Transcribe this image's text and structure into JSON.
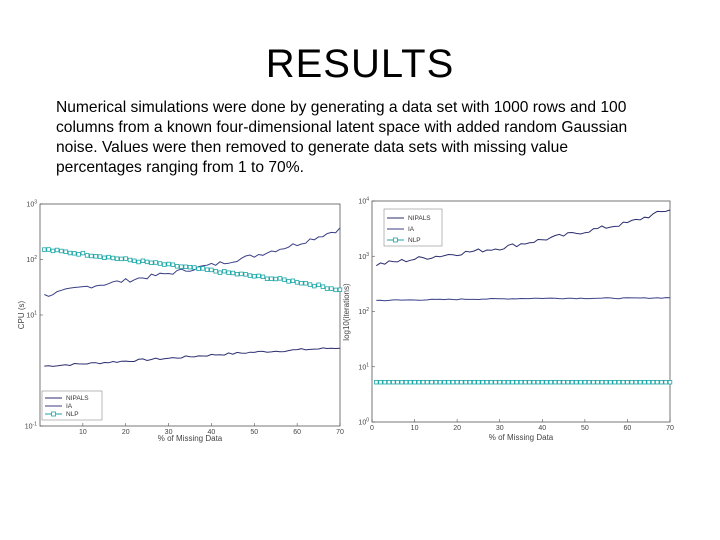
{
  "slide": {
    "title": "RESULTS",
    "text": "Numerical simulations were done by generating a data set with 1000 rows and 100 columns from a known four-dimensional latent space with added random Gaussian noise. Values were then removed to generate data sets with missing value percentages ranging from 1 to 70%."
  },
  "colors": {
    "nipals": "#2a2d6e",
    "ia": "#3a3f86",
    "nlp": "#1aa6a6"
  },
  "chart_data": [
    {
      "type": "line",
      "title": "",
      "xlabel": "% of Missing Data",
      "ylabel": "CPU (s)",
      "xlim": [
        0,
        70
      ],
      "ylim_log10": [
        -1,
        3
      ],
      "yscale": "log",
      "xticks": [
        "10",
        "20",
        "30",
        "40",
        "50",
        "60",
        "70"
      ],
      "yticks": [
        {
          "base": "10",
          "exp": "3",
          "v": 3
        },
        {
          "base": "10",
          "exp": "2",
          "v": 2
        },
        {
          "base": "10",
          "exp": "1",
          "v": 1
        },
        {
          "base": "10",
          "exp": "-1",
          "v": -1
        }
      ],
      "legend": {
        "position": "bottom-left",
        "entries": [
          "NIPALS",
          "IA",
          "NLP"
        ]
      },
      "series": [
        {
          "name": "NIPALS",
          "color_key": "nipals",
          "marker": "none",
          "anchors": [
            [
              1,
              0.08
            ],
            [
              10,
              0.12
            ],
            [
              20,
              0.17
            ],
            [
              30,
              0.22
            ],
            [
              40,
              0.28
            ],
            [
              50,
              0.33
            ],
            [
              60,
              0.37
            ],
            [
              70,
              0.41
            ]
          ],
          "noise": 0.02
        },
        {
          "name": "IA",
          "color_key": "ia",
          "marker": "none",
          "anchors": [
            [
              1,
              1.35
            ],
            [
              10,
              1.5
            ],
            [
              20,
              1.62
            ],
            [
              30,
              1.75
            ],
            [
              40,
              1.9
            ],
            [
              50,
              2.07
            ],
            [
              60,
              2.28
            ],
            [
              70,
              2.55
            ]
          ],
          "noise": 0.04
        },
        {
          "name": "NLP",
          "color_key": "nlp",
          "marker": "square",
          "anchors": [
            [
              1,
              2.18
            ],
            [
              10,
              2.1
            ],
            [
              20,
              2.0
            ],
            [
              30,
              1.9
            ],
            [
              40,
              1.8
            ],
            [
              50,
              1.7
            ],
            [
              60,
              1.6
            ],
            [
              70,
              1.45
            ]
          ],
          "noise": 0.02
        }
      ]
    },
    {
      "type": "line",
      "title": "",
      "xlabel": "% of Missing Data",
      "ylabel": "log10(iterations)",
      "xlim": [
        0,
        70
      ],
      "ylim": [
        0,
        4
      ],
      "yscale": "log",
      "xticks": [
        "0",
        "10",
        "20",
        "30",
        "40",
        "50",
        "60",
        "70"
      ],
      "yticks": [
        {
          "base": "10",
          "exp": "4",
          "v": 4
        },
        {
          "base": "10",
          "exp": "3",
          "v": 3
        },
        {
          "base": "10",
          "exp": "2",
          "v": 2
        },
        {
          "base": "10",
          "exp": "1",
          "v": 1
        },
        {
          "base": "10",
          "exp": "0",
          "v": 0
        }
      ],
      "legend": {
        "position": "top-right",
        "entries": [
          "NIPALS",
          "IA",
          "NLP"
        ]
      },
      "series": [
        {
          "name": "NIPALS",
          "color_key": "nipals",
          "marker": "none",
          "anchors": [
            [
              1,
              2.85
            ],
            [
              10,
              2.95
            ],
            [
              20,
              3.05
            ],
            [
              30,
              3.15
            ],
            [
              40,
              3.3
            ],
            [
              50,
              3.45
            ],
            [
              60,
              3.6
            ],
            [
              70,
              3.85
            ]
          ],
          "noise": 0.04
        },
        {
          "name": "IA",
          "color_key": "ia",
          "marker": "none",
          "anchors": [
            [
              1,
              2.2
            ],
            [
              20,
              2.22
            ],
            [
              40,
              2.24
            ],
            [
              60,
              2.24
            ],
            [
              70,
              2.25
            ]
          ],
          "noise": 0.008
        },
        {
          "name": "NLP",
          "color_key": "nlp",
          "marker": "square",
          "anchors": [
            [
              1,
              0.72
            ],
            [
              70,
              0.72
            ]
          ],
          "noise": 0.0
        }
      ]
    }
  ]
}
